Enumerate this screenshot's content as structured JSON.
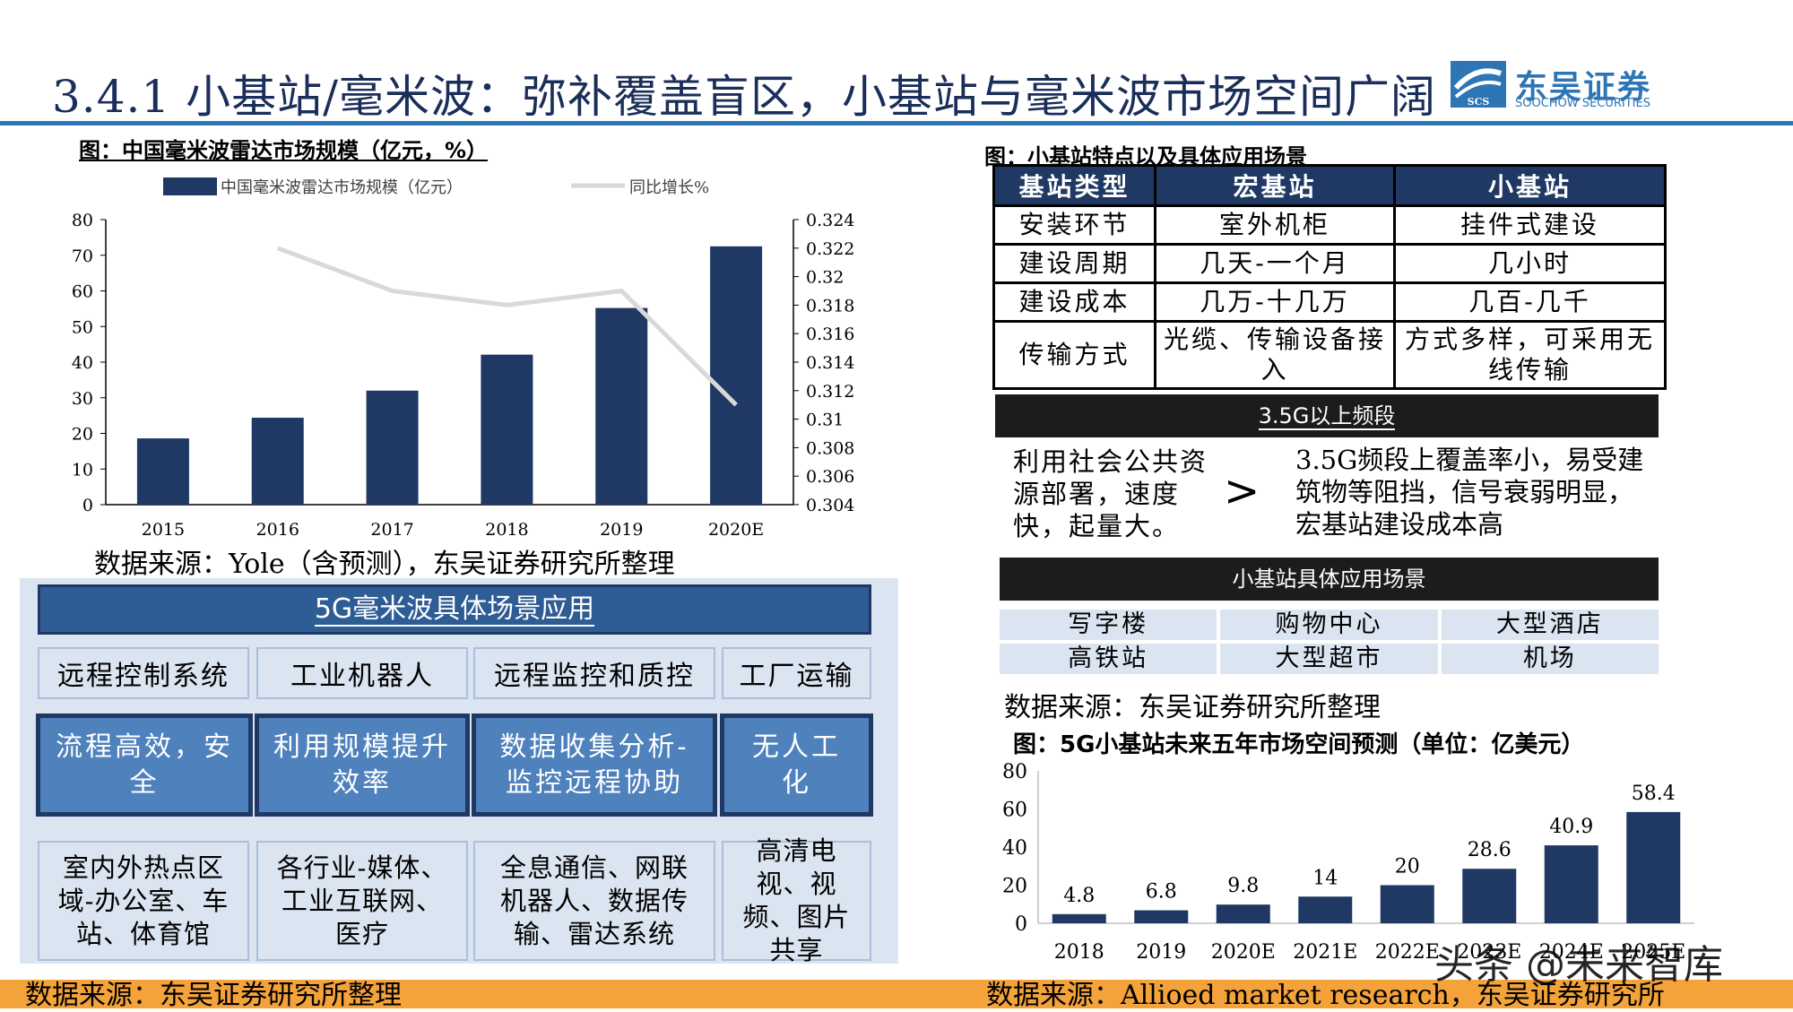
{
  "header": {
    "title": "3.4.1 小基站/毫米波：弥补覆盖盲区，小基站与毫米波市场空间广阔",
    "logo_name": "东吴证券",
    "logo_en": "SOOCHOW SECURITIES",
    "logo_mark": "SCS"
  },
  "colors": {
    "navy": "#1f3864",
    "bar": "#1f3864",
    "accent": "#2e75b6",
    "line": "#d9d9d9",
    "orange": "#f4a23a"
  },
  "chart_left": {
    "caption": "图：中国毫米波雷达市场规模（亿元，%）",
    "source": "数据来源：Yole（含预测），东吴证券研究所整理",
    "chart_data": {
      "type": "bar",
      "categories": [
        "2015",
        "2016",
        "2017",
        "2018",
        "2019",
        "2020E"
      ],
      "series": [
        {
          "name": "中国毫米波雷达市场规模（亿元）",
          "type": "bar",
          "axis": "left",
          "values": [
            18.6,
            24.4,
            32.0,
            42.1,
            55.2,
            72.5
          ]
        },
        {
          "name": "同比增长%",
          "type": "line",
          "axis": "right",
          "values": [
            null,
            0.322,
            0.319,
            0.318,
            0.319,
            0.311
          ]
        }
      ],
      "y_left": {
        "min": 0,
        "max": 80,
        "ticks": [
          "0",
          "10",
          "20",
          "30",
          "40",
          "50",
          "60",
          "70",
          "80"
        ]
      },
      "y_right": {
        "min": 0.304,
        "max": 0.324,
        "ticks": [
          "0.304",
          "0.306",
          "0.308",
          "0.31",
          "0.312",
          "0.314",
          "0.316",
          "0.318",
          "0.32",
          "0.322",
          "0.324"
        ]
      },
      "legend": "top"
    }
  },
  "table": {
    "caption": "图：小基站特点以及具体应用场景",
    "headers": [
      "基站类型",
      "宏基站",
      "小基站"
    ],
    "rows": [
      [
        "安装环节",
        "室外机柜",
        "挂件式建设"
      ],
      [
        "建设周期",
        "几天-一个月",
        "几小时"
      ],
      [
        "建设成本",
        "几万-十几万",
        "几百-几千"
      ],
      [
        "传输方式",
        "光缆、传输设备接入",
        "方式多样，可采用无线传输"
      ]
    ]
  },
  "band": {
    "title": "3.5G以上频段",
    "left": "利用社会公共资源部署，速度快，起量大。",
    "symbol": ">",
    "right": "3.5G频段上覆盖率小，易受建筑物等阻挡，信号衰弱明显，宏基站建设成本高"
  },
  "scenes": {
    "title": "小基站具体应用场景",
    "items": [
      "写字楼",
      "购物中心",
      "大型酒店",
      "高铁站",
      "大型超市",
      "机场"
    ],
    "source": "数据来源：东吴证券研究所整理"
  },
  "mmwave": {
    "title": "5G毫米波具体场景应用",
    "row1": [
      "远程控制系统",
      "工业机器人",
      "远程监控和质控",
      "工厂运输"
    ],
    "row2": [
      "流程高效，安全",
      "利用规模提升效率",
      "数据收集分析-监控远程协助",
      "无人工化"
    ],
    "row3": [
      "室内外热点区域-办公室、车站、体育馆",
      "各行业-媒体、工业互联网、医疗",
      "全息通信、网联机器人、数据传输、雷达系统",
      "高清电视、视频、图片共享"
    ],
    "source": "数据来源：东吴证券研究所整理"
  },
  "chart_right": {
    "caption": "图：5G小基站未来五年市场空间预测（单位：亿美元）",
    "source": "数据来源：Allioed market research，东吴证券研究所",
    "chart_data": {
      "type": "bar",
      "categories": [
        "2018",
        "2019",
        "2020E",
        "2021E",
        "2022E",
        "2023E",
        "2024E",
        "2025E"
      ],
      "values": [
        4.8,
        6.8,
        9.8,
        14,
        20,
        28.6,
        40.9,
        58.4
      ],
      "value_labels": [
        "4.8",
        "6.8",
        "9.8",
        "14",
        "20",
        "28.6",
        "40.9",
        "58.4"
      ],
      "ylim": [
        0,
        80
      ],
      "y_ticks": [
        "0",
        "20",
        "40",
        "60",
        "80"
      ]
    }
  },
  "watermark": "头条 @未来智库"
}
